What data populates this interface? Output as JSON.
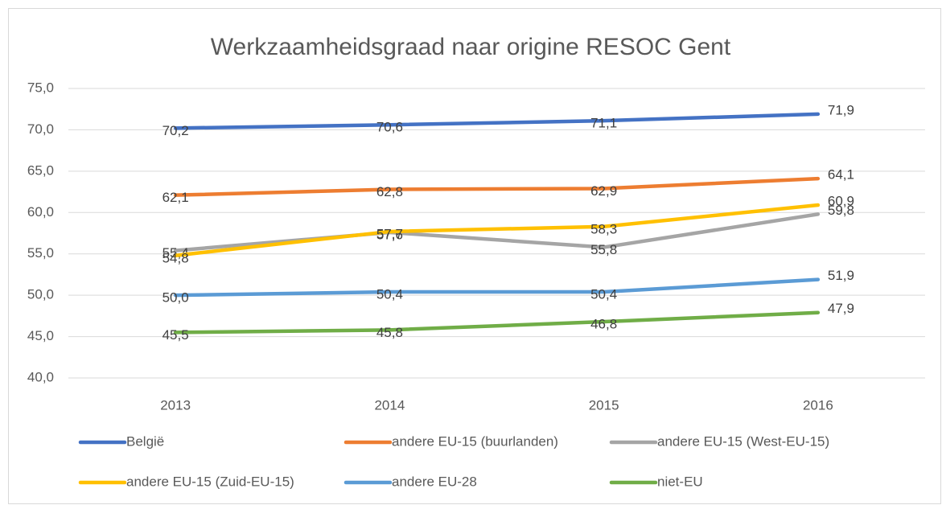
{
  "chart_data": {
    "type": "line",
    "title": "Werkzaamheidsgraad naar origine RESOC Gent",
    "categories": [
      "2013",
      "2014",
      "2015",
      "2016"
    ],
    "series": [
      {
        "name": "België",
        "color": "#4472c4",
        "values": [
          70.2,
          70.6,
          71.1,
          71.9
        ],
        "value_labels": [
          "70,2",
          "70,6",
          "71,1",
          "71,9"
        ]
      },
      {
        "name": "andere EU-15 (buurlanden)",
        "color": "#ed7d31",
        "values": [
          62.1,
          62.8,
          62.9,
          64.1
        ],
        "value_labels": [
          "62,1",
          "62,8",
          "62,9",
          "64,1"
        ]
      },
      {
        "name": "andere EU-15 (West-EU-15)",
        "color": "#a5a5a5",
        "values": [
          55.4,
          57.6,
          55.8,
          59.8
        ],
        "value_labels": [
          "55,4",
          "57,6",
          "55,8",
          "59,8"
        ]
      },
      {
        "name": "andere EU-15 (Zuid-EU-15)",
        "color": "#ffc000",
        "values": [
          54.8,
          57.7,
          58.3,
          60.9
        ],
        "value_labels": [
          "54,8",
          "57,7",
          "58,3",
          "60,9"
        ]
      },
      {
        "name": "andere EU-28",
        "color": "#5b9bd5",
        "values": [
          50.0,
          50.4,
          50.4,
          51.9
        ],
        "value_labels": [
          "50,0",
          "50,4",
          "50,4",
          "51,9"
        ]
      },
      {
        "name": "niet-EU",
        "color": "#70ad47",
        "values": [
          45.5,
          45.8,
          46.8,
          47.9
        ],
        "value_labels": [
          "45,5",
          "45,8",
          "46,8",
          "47,9"
        ]
      }
    ],
    "ylim": [
      40,
      75
    ],
    "yticks": [
      {
        "value": 40,
        "label": "40,0"
      },
      {
        "value": 45,
        "label": "45,0"
      },
      {
        "value": 50,
        "label": "50,0"
      },
      {
        "value": 55,
        "label": "55,0"
      },
      {
        "value": 60,
        "label": "60,0"
      },
      {
        "value": 65,
        "label": "65,0"
      },
      {
        "value": 70,
        "label": "70,0"
      },
      {
        "value": 75,
        "label": "75,0"
      }
    ],
    "grid": true,
    "legend": "bottom"
  }
}
